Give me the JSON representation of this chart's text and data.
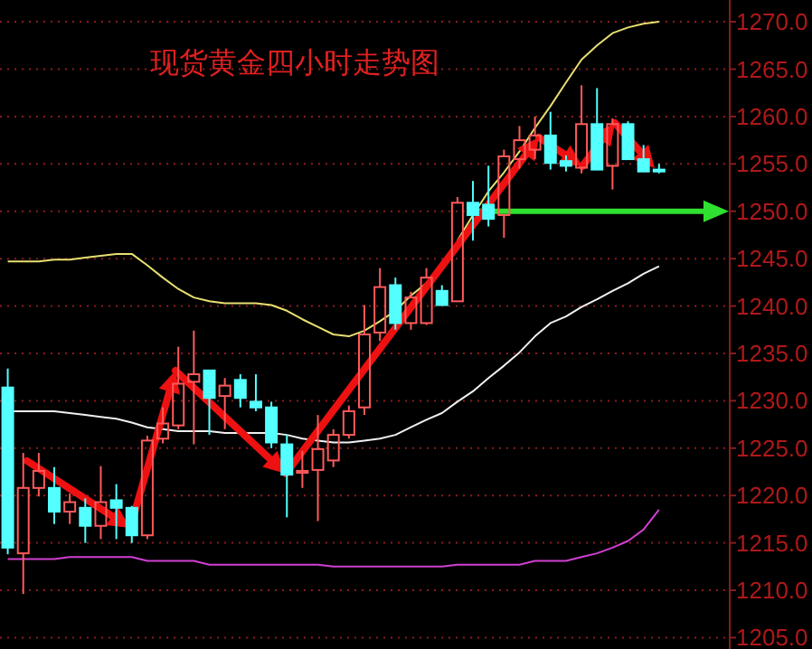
{
  "chart_data": {
    "type": "candlestick",
    "title": "现货黄金四小时走势图",
    "categories": [
      null,
      null,
      null,
      null,
      null,
      null,
      null,
      null,
      null,
      null,
      null,
      null,
      null,
      null,
      null,
      null,
      null,
      null,
      null,
      null,
      null,
      null,
      null,
      null,
      null,
      null,
      null,
      null,
      null,
      null,
      null,
      null,
      null,
      null,
      null,
      null,
      null,
      null,
      null,
      null,
      null,
      null,
      null
    ],
    "ohlc": [
      [
        1231.4,
        1233.4,
        1213.8,
        1214.5
      ],
      [
        1213.9,
        1224.5,
        1209.6,
        1220.8
      ],
      [
        1220.8,
        1224.5,
        1219.9,
        1222.6
      ],
      [
        1220.8,
        1223.0,
        1217.0,
        1218.3
      ],
      [
        1218.3,
        1220.2,
        1217.0,
        1219.3
      ],
      [
        1218.7,
        1219.7,
        1215.0,
        1216.8
      ],
      [
        1216.8,
        1223.1,
        1215.4,
        1219.3
      ],
      [
        1219.5,
        1221.2,
        1215.4,
        1218.7
      ],
      [
        1218.7,
        1218.9,
        1215.0,
        1215.8
      ],
      [
        1215.8,
        1226.3,
        1215.4,
        1225.8
      ],
      [
        1226.0,
        1229.3,
        1225.5,
        1227.6
      ],
      [
        1227.4,
        1235.7,
        1227.0,
        1231.8
      ],
      [
        1232.0,
        1237.4,
        1225.4,
        1232.8
      ],
      [
        1233.2,
        1233.2,
        1226.4,
        1230.3
      ],
      [
        1230.5,
        1232.4,
        1227.0,
        1231.6
      ],
      [
        1232.2,
        1232.8,
        1229.3,
        1230.3
      ],
      [
        1229.9,
        1232.8,
        1228.9,
        1229.3
      ],
      [
        1229.3,
        1229.9,
        1225.0,
        1225.6
      ],
      [
        1225.4,
        1226.4,
        1217.7,
        1222.2
      ],
      [
        1222.4,
        1224.7,
        1220.8,
        1222.6
      ],
      [
        1222.7,
        1228.5,
        1217.3,
        1224.9
      ],
      [
        1223.7,
        1227.0,
        1223.0,
        1226.4
      ],
      [
        1226.4,
        1229.5,
        1226.0,
        1228.9
      ],
      [
        1229.3,
        1240.1,
        1228.5,
        1237.0
      ],
      [
        1237.2,
        1244.0,
        1236.3,
        1242.0
      ],
      [
        1242.2,
        1243.0,
        1237.5,
        1238.2
      ],
      [
        1238.2,
        1241.5,
        1237.5,
        1240.9
      ],
      [
        1238.2,
        1244.0,
        1238.0,
        1243.0
      ],
      [
        1241.6,
        1242.2,
        1240.1,
        1240.1
      ],
      [
        1240.5,
        1251.5,
        1240.5,
        1250.9
      ],
      [
        1250.9,
        1253.2,
        1246.9,
        1249.6
      ],
      [
        1250.7,
        1254.8,
        1248.4,
        1249.2
      ],
      [
        1249.6,
        1256.5,
        1247.2,
        1255.8
      ],
      [
        1255.5,
        1259.0,
        1254.5,
        1257.5
      ],
      [
        1256.5,
        1260.0,
        1255.5,
        1258.0
      ],
      [
        1258.0,
        1260.5,
        1254.4,
        1255.1
      ],
      [
        1255.3,
        1255.9,
        1254.2,
        1254.8
      ],
      [
        1254.6,
        1263.3,
        1254.0,
        1259.2
      ],
      [
        1259.2,
        1263.0,
        1254.4,
        1254.4
      ],
      [
        1254.8,
        1259.8,
        1252.3,
        1259.2
      ],
      [
        1259.2,
        1259.5,
        1255.5,
        1255.5
      ],
      [
        1255.5,
        1257.0,
        1254.2,
        1254.2
      ],
      [
        1254.4,
        1255.0,
        1254.0,
        1254.2
      ]
    ],
    "series": [
      {
        "type": "line",
        "color": "#e8e070",
        "values": [
          1244.7,
          1244.7,
          1244.7,
          1244.9,
          1244.9,
          1245.1,
          1245.3,
          1245.5,
          1245.5,
          1244.3,
          1243.0,
          1241.8,
          1240.9,
          1240.5,
          1240.3,
          1240.3,
          1240.3,
          1240.1,
          1239.5,
          1238.6,
          1237.8,
          1237.0,
          1236.8,
          1237.4,
          1238.4,
          1239.5,
          1241.1,
          1242.4,
          null,
          1246.9,
          1249.6,
          1252.1,
          1254.1,
          1256.3,
          1258.8,
          1261.1,
          1263.6,
          1266.0,
          1267.5,
          1268.8,
          1269.4,
          1269.8,
          1270.0
        ]
      },
      {
        "type": "line",
        "color": "#f0f0f0",
        "values": [
          1228.9,
          1228.9,
          1228.9,
          1228.9,
          1228.7,
          1228.5,
          1228.3,
          1228.1,
          1227.7,
          1227.2,
          1227.0,
          1226.8,
          1226.8,
          1226.8,
          1226.6,
          1226.6,
          1226.6,
          1226.6,
          1226.4,
          1226.0,
          1225.8,
          1225.6,
          1225.6,
          1225.8,
          1226.0,
          1226.4,
          1227.2,
          1228.0,
          1228.7,
          1229.9,
          1231.0,
          1232.4,
          1233.7,
          1235.1,
          1236.8,
          1238.2,
          1238.9,
          1239.9,
          1240.7,
          1241.6,
          1242.4,
          1243.4,
          1244.2
        ]
      },
      {
        "type": "line",
        "color": "#d040d0",
        "values": [
          1213.3,
          1213.3,
          1213.3,
          1213.3,
          1213.5,
          1213.5,
          1213.5,
          1213.5,
          1213.5,
          1213.1,
          1213.1,
          1213.1,
          1213.1,
          1212.7,
          1212.7,
          1212.7,
          1212.7,
          1212.7,
          1212.7,
          1212.7,
          1212.7,
          1212.5,
          1212.5,
          1212.5,
          1212.5,
          1212.5,
          1212.5,
          1212.5,
          1212.5,
          1212.7,
          1212.7,
          1212.7,
          1212.7,
          1212.7,
          1213.1,
          1213.1,
          1213.1,
          1213.5,
          1213.9,
          1214.5,
          1215.2,
          1216.4,
          1218.5
        ]
      }
    ],
    "ylim": [
      1203.8,
      1272.3
    ],
    "yticks": [
      {
        "value": 1205,
        "label": "1205.0"
      },
      {
        "value": 1210,
        "label": "1210.0"
      },
      {
        "value": 1215,
        "label": "1215.0"
      },
      {
        "value": 1220,
        "label": "1220.0"
      },
      {
        "value": 1225,
        "label": "1225.0"
      },
      {
        "value": 1230,
        "label": "1230.0"
      },
      {
        "value": 1235,
        "label": "1235.0"
      },
      {
        "value": 1240,
        "label": "1240.0"
      },
      {
        "value": 1245,
        "label": "1245.0"
      },
      {
        "value": 1250,
        "label": "1250.0"
      },
      {
        "value": 1255,
        "label": "1255.0"
      },
      {
        "value": 1260,
        "label": "1260.0"
      },
      {
        "value": 1265,
        "label": "1265.0"
      },
      {
        "value": 1270,
        "label": "1270.0"
      }
    ],
    "grid": "y",
    "ref_lines": [
      {
        "axis": "y",
        "value": 1250,
        "color": "#30e030"
      }
    ]
  }
}
